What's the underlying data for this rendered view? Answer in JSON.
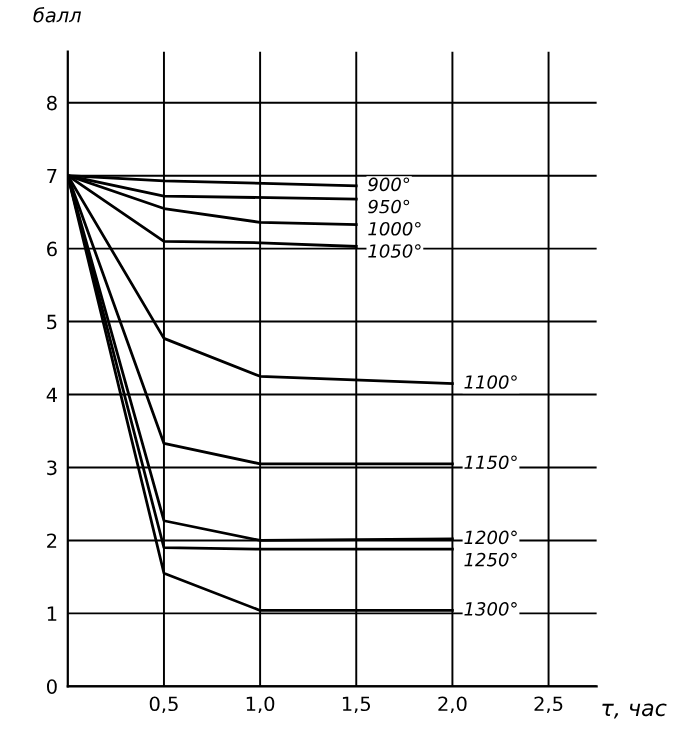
{
  "chart_data": {
    "type": "line",
    "ylabel": "балл",
    "xlabel": "τ, час",
    "xlim": [
      0,
      2.75
    ],
    "ylim": [
      0,
      8.7
    ],
    "xticks": [
      {
        "value": 0.5,
        "label": "0,5"
      },
      {
        "value": 1.0,
        "label": "1,0"
      },
      {
        "value": 1.5,
        "label": "1,5"
      },
      {
        "value": 2.0,
        "label": "2,0"
      },
      {
        "value": 2.5,
        "label": "2,5"
      }
    ],
    "yticks": [
      0,
      1,
      2,
      3,
      4,
      5,
      6,
      7,
      8
    ],
    "grid": true,
    "marker": "none",
    "line_style": "solid",
    "series": [
      {
        "name": "900°",
        "color": "#000000",
        "x": [
          0,
          0.5,
          1.5
        ],
        "values": [
          7,
          6.93,
          6.86
        ]
      },
      {
        "name": "950°",
        "color": "#000000",
        "x": [
          0,
          0.5,
          1.5
        ],
        "values": [
          7,
          6.72,
          6.68
        ]
      },
      {
        "name": "1000°",
        "color": "#000000",
        "x": [
          0,
          0.5,
          1.0,
          1.5
        ],
        "values": [
          7,
          6.55,
          6.36,
          6.33
        ]
      },
      {
        "name": "1050°",
        "color": "#000000",
        "x": [
          0,
          0.5,
          1.0,
          1.5
        ],
        "values": [
          7,
          6.1,
          6.08,
          6.03
        ]
      },
      {
        "name": "1100°",
        "color": "#000000",
        "x": [
          0,
          0.5,
          1.0,
          2.0
        ],
        "values": [
          7,
          4.77,
          4.25,
          4.15
        ]
      },
      {
        "name": "1150°",
        "color": "#000000",
        "x": [
          0,
          0.5,
          1.0,
          2.0
        ],
        "values": [
          7,
          3.33,
          3.05,
          3.05
        ]
      },
      {
        "name": "1200°",
        "color": "#000000",
        "x": [
          0,
          0.5,
          1.0,
          2.0
        ],
        "values": [
          7,
          2.27,
          2.0,
          2.02
        ]
      },
      {
        "name": "1250°",
        "color": "#000000",
        "x": [
          0,
          0.5,
          1.0,
          2.0
        ],
        "values": [
          7,
          1.9,
          1.88,
          1.88
        ]
      },
      {
        "name": "1300°",
        "color": "#000000",
        "x": [
          0,
          0.5,
          1.0,
          2.0
        ],
        "values": [
          7,
          1.55,
          1.04,
          1.04
        ]
      }
    ]
  }
}
